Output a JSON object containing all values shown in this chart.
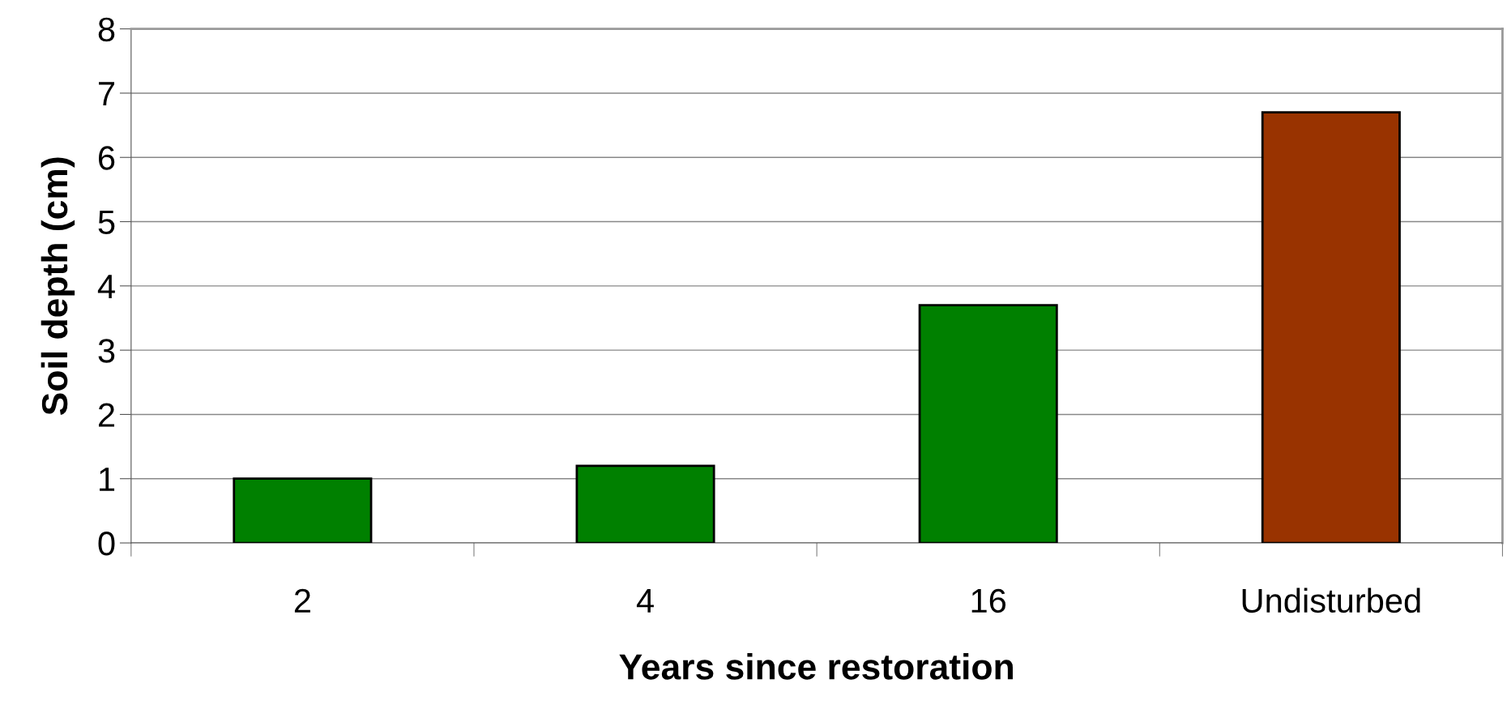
{
  "chart_data": {
    "type": "bar",
    "xlabel": "Years since restoration",
    "ylabel": "Soil depth (cm)",
    "categories": [
      "2",
      "4",
      "16",
      "Undisturbed"
    ],
    "values": [
      1.0,
      1.2,
      3.7,
      6.7
    ],
    "colors": [
      "#008000",
      "#008000",
      "#008000",
      "#993300"
    ],
    "ylim": [
      0,
      8
    ],
    "yticks": [
      0,
      1,
      2,
      3,
      4,
      5,
      6,
      7,
      8
    ],
    "grid": "y"
  }
}
